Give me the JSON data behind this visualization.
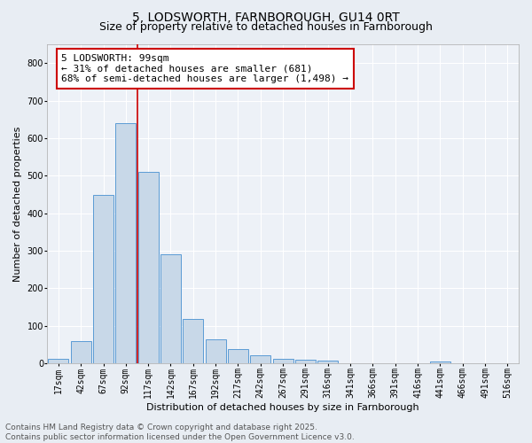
{
  "title1": "5, LODSWORTH, FARNBOROUGH, GU14 0RT",
  "title2": "Size of property relative to detached houses in Farnborough",
  "xlabel": "Distribution of detached houses by size in Farnborough",
  "ylabel": "Number of detached properties",
  "bar_labels": [
    "17sqm",
    "42sqm",
    "67sqm",
    "92sqm",
    "117sqm",
    "142sqm",
    "167sqm",
    "192sqm",
    "217sqm",
    "242sqm",
    "267sqm",
    "291sqm",
    "316sqm",
    "341sqm",
    "366sqm",
    "391sqm",
    "416sqm",
    "441sqm",
    "466sqm",
    "491sqm",
    "516sqm"
  ],
  "bar_values": [
    13,
    58,
    449,
    640,
    510,
    291,
    118,
    63,
    37,
    22,
    13,
    10,
    7,
    0,
    0,
    0,
    0,
    4,
    0,
    0,
    0
  ],
  "bar_color": "#c8d8e8",
  "bar_edge_color": "#5b9bd5",
  "vline_color": "#cc0000",
  "vline_x_index": 3,
  "annotation_text": "5 LODSWORTH: 99sqm\n← 31% of detached houses are smaller (681)\n68% of semi-detached houses are larger (1,498) →",
  "annotation_box_color": "#ffffff",
  "annotation_box_edge": "#cc0000",
  "ylim": [
    0,
    850
  ],
  "yticks": [
    0,
    100,
    200,
    300,
    400,
    500,
    600,
    700,
    800
  ],
  "fig_bg": "#e8edf3",
  "plot_bg": "#edf1f7",
  "footer_text": "Contains HM Land Registry data © Crown copyright and database right 2025.\nContains public sector information licensed under the Open Government Licence v3.0.",
  "title_fontsize": 10,
  "subtitle_fontsize": 9,
  "axis_label_fontsize": 8,
  "tick_fontsize": 7,
  "annotation_fontsize": 8,
  "footer_fontsize": 6.5,
  "grid_color": "#ffffff",
  "spine_color": "#aaaaaa"
}
